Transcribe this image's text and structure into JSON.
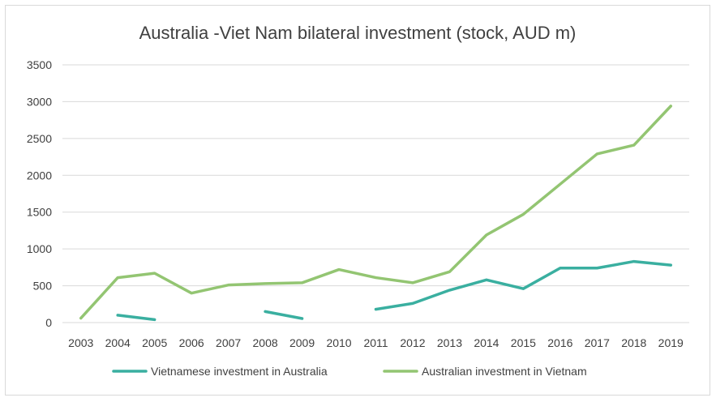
{
  "chart_data": {
    "type": "line",
    "title": "Australia -Viet Nam bilateral investment (stock, AUD m)",
    "xlabel": "",
    "ylabel": "",
    "ylim": [
      0,
      3500
    ],
    "yticks": [
      "0",
      "500",
      "1000",
      "1500",
      "2000",
      "2500",
      "3000",
      "3500"
    ],
    "grid": true,
    "legend_position": "bottom",
    "categories": [
      "2003",
      "2004",
      "2005",
      "2006",
      "2007",
      "2008",
      "2009",
      "2010",
      "2011",
      "2012",
      "2013",
      "2014",
      "2015",
      "2016",
      "2017",
      "2018",
      "2019"
    ],
    "series": [
      {
        "name": "Vietnamese investment in Australia",
        "color": "#3aafa0",
        "values": [
          null,
          100,
          40,
          null,
          null,
          150,
          55,
          null,
          180,
          260,
          440,
          580,
          460,
          740,
          740,
          830,
          780
        ]
      },
      {
        "name": "Australian investment in Vietnam",
        "color": "#93c572",
        "values": [
          60,
          610,
          670,
          400,
          510,
          530,
          540,
          720,
          610,
          540,
          690,
          1190,
          1470,
          1880,
          2290,
          2410,
          2940
        ]
      }
    ]
  }
}
